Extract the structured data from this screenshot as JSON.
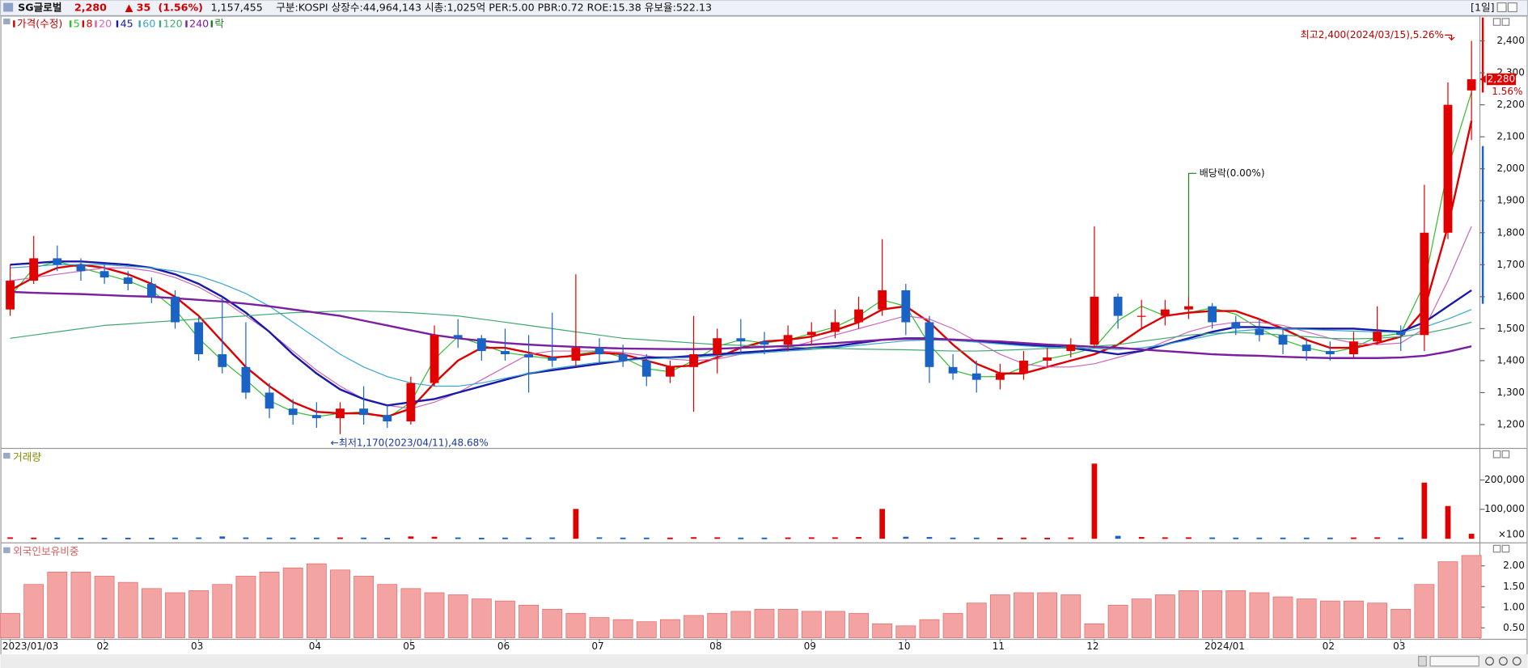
{
  "header": {
    "name": "SG글로벌",
    "price": "2,280",
    "change": "▲ 35",
    "change_pct": "(1.56%)",
    "volume": "1,157,455",
    "info": "구분:KOSPI 상장수:44,964,143 시총:1,025억 PER:5.00 PBR:0.72 ROE:15.38 유보율:522.13",
    "period": "[1일]"
  },
  "chart_data": [
    {
      "type": "candlestick",
      "price_label": "가격(수정)",
      "price_color": "#c00000",
      "ex_label": "락",
      "ex_color": "#208020",
      "up_color": "#e00000",
      "down_color": "#1a62c4",
      "categories": [
        "2023/01/03",
        null,
        null,
        null,
        "02",
        null,
        null,
        null,
        "03",
        null,
        null,
        null,
        null,
        "04",
        null,
        null,
        null,
        "05",
        null,
        null,
        null,
        "06",
        null,
        null,
        null,
        "07",
        null,
        null,
        null,
        null,
        "08",
        null,
        null,
        null,
        "09",
        null,
        null,
        null,
        "10",
        null,
        null,
        null,
        "11",
        null,
        null,
        null,
        "12",
        null,
        null,
        null,
        null,
        "2024/01",
        null,
        null,
        null,
        null,
        "02",
        null,
        null,
        "03",
        null,
        null,
        null
      ],
      "open": [
        1560,
        1650,
        1720,
        1700,
        1680,
        1660,
        1640,
        1600,
        1520,
        1420,
        1380,
        1300,
        1250,
        1230,
        1220,
        1250,
        1230,
        1210,
        1330,
        1480,
        1470,
        1430,
        1420,
        1410,
        1400,
        1440,
        1420,
        1400,
        1350,
        1380,
        1420,
        1470,
        1460,
        1450,
        1480,
        1490,
        1520,
        1560,
        1620,
        1520,
        1380,
        1360,
        1340,
        1360,
        1400,
        1430,
        1450,
        1600,
        1540,
        1540,
        1560,
        1570,
        1520,
        1500,
        1480,
        1450,
        1430,
        1420,
        1460,
        1490,
        1480,
        1800,
        2245
      ],
      "high": [
        1700,
        1790,
        1760,
        1720,
        1700,
        1680,
        1660,
        1620,
        1540,
        1600,
        1520,
        1330,
        1280,
        1270,
        1270,
        1320,
        1260,
        1350,
        1510,
        1530,
        1480,
        1500,
        1480,
        1550,
        1670,
        1470,
        1450,
        1420,
        1400,
        1540,
        1500,
        1530,
        1490,
        1510,
        1520,
        1560,
        1600,
        1780,
        1640,
        1540,
        1420,
        1400,
        1390,
        1430,
        1440,
        1470,
        1820,
        1610,
        1590,
        1590,
        1600,
        1580,
        1540,
        1530,
        1500,
        1470,
        1460,
        1490,
        1570,
        1510,
        1950,
        2270,
        2400
      ],
      "low": [
        1540,
        1640,
        1680,
        1650,
        1640,
        1620,
        1580,
        1500,
        1400,
        1360,
        1280,
        1220,
        1200,
        1190,
        1170,
        1200,
        1190,
        1200,
        1320,
        1440,
        1400,
        1400,
        1300,
        1380,
        1380,
        1390,
        1380,
        1320,
        1330,
        1240,
        1360,
        1420,
        1420,
        1430,
        1450,
        1470,
        1500,
        1540,
        1480,
        1330,
        1340,
        1300,
        1310,
        1340,
        1380,
        1410,
        1440,
        1500,
        1500,
        1510,
        1530,
        1500,
        1480,
        1460,
        1420,
        1400,
        1400,
        1410,
        1450,
        1430,
        1430,
        1780,
        2090
      ],
      "close": [
        1650,
        1720,
        1700,
        1680,
        1660,
        1640,
        1600,
        1520,
        1420,
        1380,
        1300,
        1250,
        1230,
        1220,
        1250,
        1230,
        1210,
        1330,
        1480,
        1470,
        1430,
        1420,
        1410,
        1400,
        1440,
        1420,
        1400,
        1350,
        1380,
        1420,
        1470,
        1460,
        1450,
        1480,
        1490,
        1520,
        1560,
        1620,
        1520,
        1380,
        1360,
        1340,
        1360,
        1400,
        1410,
        1450,
        1600,
        1540,
        1540,
        1560,
        1570,
        1520,
        1500,
        1480,
        1450,
        1430,
        1420,
        1460,
        1490,
        1480,
        1800,
        2200,
        2280
      ],
      "series": [
        {
          "name": "5",
          "color": "#2fbf2f",
          "values": [
            1600,
            1690,
            1710,
            1690,
            1670,
            1650,
            1620,
            1560,
            1470,
            1400,
            1340,
            1275,
            1240,
            1225,
            1235,
            1240,
            1220,
            1270,
            1405,
            1475,
            1450,
            1425,
            1415,
            1405,
            1420,
            1430,
            1410,
            1375,
            1365,
            1400,
            1445,
            1465,
            1455,
            1465,
            1485,
            1505,
            1540,
            1590,
            1570,
            1450,
            1370,
            1350,
            1350,
            1380,
            1405,
            1420,
            1440,
            1525,
            1570,
            1540,
            1550,
            1565,
            1545,
            1500,
            1465,
            1440,
            1425,
            1440,
            1475,
            1485,
            1640,
            2000,
            2240
          ]
        },
        {
          "name": "8",
          "color": "#dd0000",
          "values": [
            1620,
            1660,
            1690,
            1700,
            1690,
            1670,
            1640,
            1600,
            1540,
            1460,
            1380,
            1320,
            1270,
            1240,
            1235,
            1235,
            1225,
            1250,
            1330,
            1400,
            1440,
            1440,
            1425,
            1410,
            1415,
            1425,
            1420,
            1400,
            1380,
            1385,
            1410,
            1440,
            1460,
            1465,
            1475,
            1495,
            1520,
            1560,
            1570,
            1520,
            1450,
            1390,
            1360,
            1360,
            1380,
            1400,
            1420,
            1450,
            1500,
            1540,
            1550,
            1555,
            1555,
            1530,
            1500,
            1465,
            1440,
            1440,
            1455,
            1475,
            1560,
            1820,
            2150
          ]
        },
        {
          "name": "20",
          "color": "#cc66bb",
          "values": [
            1650,
            1660,
            1670,
            1680,
            1690,
            1690,
            1680,
            1660,
            1630,
            1590,
            1540,
            1490,
            1430,
            1370,
            1320,
            1280,
            1260,
            1250,
            1270,
            1300,
            1340,
            1380,
            1420,
            1430,
            1430,
            1430,
            1425,
            1415,
            1405,
            1400,
            1405,
            1420,
            1430,
            1440,
            1460,
            1480,
            1500,
            1520,
            1540,
            1530,
            1500,
            1460,
            1420,
            1390,
            1380,
            1380,
            1390,
            1410,
            1430,
            1460,
            1490,
            1510,
            1520,
            1520,
            1510,
            1490,
            1470,
            1455,
            1450,
            1455,
            1500,
            1650,
            1820
          ]
        },
        {
          "name": "45",
          "color": "#1a1aaa",
          "values": [
            1700,
            1705,
            1710,
            1710,
            1705,
            1700,
            1690,
            1670,
            1640,
            1600,
            1550,
            1490,
            1420,
            1360,
            1310,
            1280,
            1260,
            1270,
            1280,
            1300,
            1320,
            1340,
            1360,
            1370,
            1380,
            1390,
            1400,
            1410,
            1410,
            1415,
            1420,
            1425,
            1430,
            1435,
            1440,
            1445,
            1455,
            1465,
            1470,
            1470,
            1465,
            1460,
            1455,
            1450,
            1445,
            1440,
            1430,
            1420,
            1430,
            1450,
            1470,
            1490,
            1505,
            1505,
            1500,
            1500,
            1500,
            1500,
            1495,
            1490,
            1520,
            1570,
            1620
          ]
        },
        {
          "name": "60",
          "color": "#3aa6cc",
          "values": [
            1690,
            1695,
            1700,
            1700,
            1700,
            1695,
            1690,
            1680,
            1665,
            1640,
            1610,
            1570,
            1520,
            1470,
            1420,
            1380,
            1350,
            1330,
            1320,
            1320,
            1330,
            1345,
            1360,
            1375,
            1385,
            1395,
            1400,
            1405,
            1408,
            1410,
            1415,
            1420,
            1425,
            1430,
            1435,
            1440,
            1448,
            1455,
            1462,
            1465,
            1463,
            1458,
            1452,
            1446,
            1442,
            1440,
            1438,
            1435,
            1440,
            1450,
            1465,
            1480,
            1492,
            1498,
            1500,
            1498,
            1495,
            1492,
            1490,
            1488,
            1505,
            1530,
            1560
          ]
        },
        {
          "name": "120",
          "color": "#3fa872",
          "values": [
            1470,
            1480,
            1490,
            1500,
            1510,
            1515,
            1520,
            1525,
            1530,
            1535,
            1540,
            1545,
            1550,
            1552,
            1555,
            1555,
            1553,
            1550,
            1545,
            1540,
            1530,
            1520,
            1510,
            1500,
            1490,
            1480,
            1470,
            1465,
            1460,
            1455,
            1450,
            1448,
            1445,
            1442,
            1440,
            1438,
            1436,
            1435,
            1434,
            1432,
            1430,
            1430,
            1432,
            1435,
            1438,
            1440,
            1445,
            1450,
            1460,
            1470,
            1480,
            1485,
            1488,
            1485,
            1480,
            1475,
            1470,
            1468,
            1470,
            1475,
            1485,
            1500,
            1520
          ]
        },
        {
          "name": "240",
          "color": "#7a1fa0",
          "values": [
            1615,
            1612,
            1610,
            1608,
            1605,
            1602,
            1600,
            1595,
            1590,
            1585,
            1578,
            1570,
            1560,
            1550,
            1540,
            1525,
            1510,
            1495,
            1480,
            1470,
            1462,
            1455,
            1450,
            1446,
            1443,
            1440,
            1438,
            1437,
            1436,
            1436,
            1437,
            1440,
            1443,
            1446,
            1450,
            1455,
            1460,
            1465,
            1468,
            1468,
            1466,
            1463,
            1460,
            1455,
            1450,
            1447,
            1443,
            1440,
            1435,
            1430,
            1425,
            1420,
            1417,
            1415,
            1412,
            1410,
            1408,
            1408,
            1408,
            1410,
            1415,
            1428,
            1445
          ]
        }
      ],
      "ylim": [
        1127,
        2476
      ],
      "yticks": [
        {
          "value": 1200,
          "label": "1,200"
        },
        {
          "value": 1300,
          "label": "1,300"
        },
        {
          "value": 1400,
          "label": "1,400"
        },
        {
          "value": 1500,
          "label": "1,500"
        },
        {
          "value": 1600,
          "label": "1,600"
        },
        {
          "value": 1700,
          "label": "1,700"
        },
        {
          "value": 1800,
          "label": "1,800"
        },
        {
          "value": 1900,
          "label": "1,900"
        },
        {
          "value": 2000,
          "label": "2,000"
        },
        {
          "value": 2100,
          "label": "2,100"
        },
        {
          "value": 2200,
          "label": "2,200"
        },
        {
          "value": 2300,
          "label": "2,300"
        },
        {
          "value": 2400,
          "label": "2,400"
        }
      ],
      "annotations": {
        "high": "최고2,400(2024/03/15),5.26%",
        "low": "←최저1,170(2023/04/11),48.68%",
        "dividend": "배당락(0.00%)"
      },
      "last_price_label": "2,280",
      "last_change_label": "1.56%"
    },
    {
      "type": "bar",
      "title": "거래량",
      "title_color": "#8a8a00",
      "values": [
        3000,
        2000,
        2000,
        1500,
        1500,
        1500,
        1500,
        2000,
        2500,
        6000,
        2500,
        2000,
        2000,
        2000,
        2500,
        2000,
        1500,
        6000,
        5000,
        2500,
        1500,
        2000,
        2000,
        2500,
        100000,
        3000,
        2000,
        2000,
        2000,
        3500,
        3000,
        2000,
        2000,
        2500,
        3000,
        3000,
        4000,
        100000,
        5000,
        4000,
        2000,
        2000,
        1500,
        2000,
        1500,
        2500,
        255000,
        8000,
        4000,
        3000,
        3000,
        2500,
        2000,
        2000,
        2000,
        2000,
        2000,
        2500,
        3000,
        2000,
        190000,
        110000,
        15000
      ],
      "ylim": [
        0,
        303000
      ],
      "yticks": [
        {
          "value": 200000,
          "label": "200,000"
        },
        {
          "value": 100000,
          "label": "100,000"
        }
      ],
      "unit_label": "×100"
    },
    {
      "type": "bar",
      "title": "외국인보유비중",
      "title_color": "#e06060",
      "color": "#f4a3a3",
      "edge_color": "#e06a6a",
      "values": [
        0.85,
        1.55,
        1.85,
        1.85,
        1.75,
        1.6,
        1.45,
        1.35,
        1.4,
        1.55,
        1.75,
        1.85,
        1.95,
        2.05,
        1.9,
        1.75,
        1.55,
        1.45,
        1.35,
        1.3,
        1.2,
        1.15,
        1.05,
        0.95,
        0.85,
        0.75,
        0.7,
        0.65,
        0.7,
        0.8,
        0.85,
        0.9,
        0.95,
        0.95,
        0.9,
        0.9,
        0.85,
        0.6,
        0.55,
        0.7,
        0.85,
        1.1,
        1.3,
        1.35,
        1.35,
        1.3,
        0.6,
        1.05,
        1.2,
        1.3,
        1.4,
        1.4,
        1.4,
        1.35,
        1.25,
        1.2,
        1.15,
        1.15,
        1.1,
        0.95,
        1.55,
        2.1,
        2.25
      ],
      "ylim": [
        0.26,
        2.52
      ],
      "yticks": [
        {
          "value": 2,
          "label": "2.00"
        },
        {
          "value": 1.5,
          "label": "1.50"
        },
        {
          "value": 1,
          "label": "1.00"
        },
        {
          "value": 0.5,
          "label": "0.50"
        }
      ]
    }
  ]
}
